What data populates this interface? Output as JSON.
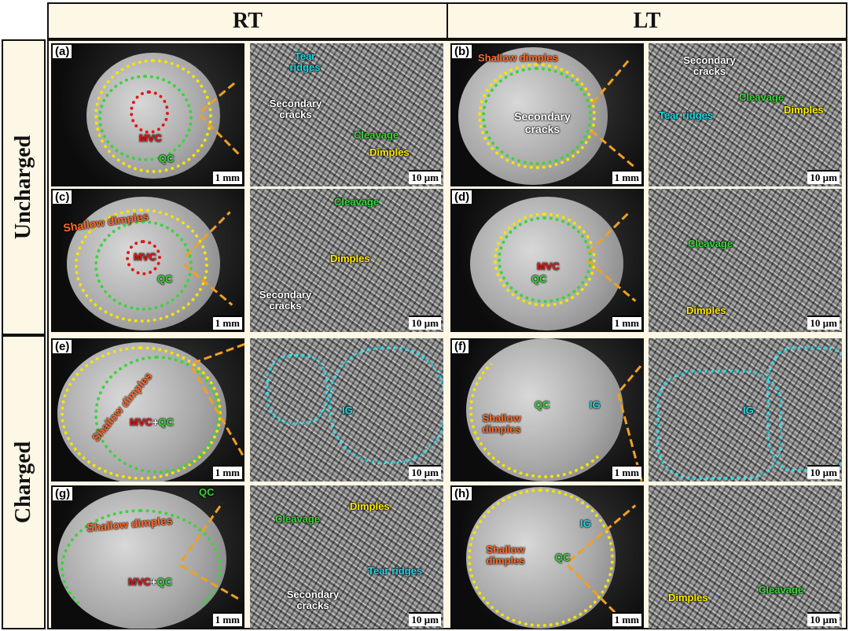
{
  "columns": [
    "RT",
    "LT"
  ],
  "rows": [
    "Uncharged",
    "Charged"
  ],
  "colors": {
    "secondary_cracks": "#ffffff",
    "cleavage": "#3cd33c",
    "dimples": "#f5e400",
    "tear_ridges": "#22d3e0",
    "shallow_dimples": "#ff6a2a",
    "mvc": "#e01818",
    "ig": "#22d3e0"
  },
  "scales": {
    "macro": "1 mm",
    "sem": "10 µm"
  },
  "panels": {
    "a": {
      "label": "(a)",
      "mvc": "MVC",
      "qc": "QC",
      "tear": "Tear ridges",
      "sec": "Secondary cracks",
      "cleav": "Cleavage",
      "dimp": "Dimples"
    },
    "b": {
      "label": "(b)",
      "shallow": "Shallow dimples",
      "sec": "Secondary cracks",
      "sec2": "Secondary cracks",
      "cleav": "Cleavage",
      "dimp": "Dimples",
      "tear": "Tear ridges"
    },
    "c": {
      "label": "(c)",
      "shallow": "Shallow dimples",
      "mvc": "MVC",
      "qc": "QC",
      "cleav": "Cleavage",
      "dimp": "Dimples",
      "sec": "Secondary cracks"
    },
    "d": {
      "label": "(d)",
      "mvc": "MVC",
      "qc": "QC",
      "cleav": "Cleavage",
      "dimp": "Dimples"
    },
    "e": {
      "label": "(e)",
      "shallow": "Shallow dimples",
      "mvc": "MVC",
      "plus": "+",
      "qc": "QC",
      "ig": "IG"
    },
    "f": {
      "label": "(f)",
      "qc": "QC",
      "ig": "IG",
      "shallow": "Shallow dimples",
      "ig2": "IG"
    },
    "g": {
      "label": "(g)",
      "shallow": "Shallow dimples",
      "qc": "QC",
      "mvc": "MVC",
      "plus": "+",
      "qc2": "QC",
      "cleav": "Cleavage",
      "dimp": "Dimples",
      "tear": "Tear ridges",
      "sec": "Secondary cracks"
    },
    "h": {
      "label": "(h)",
      "ig": "IG",
      "shallow": "Shallow dimples",
      "qc": "QC",
      "dimp": "Dimples",
      "cleav": "Cleavage"
    }
  }
}
